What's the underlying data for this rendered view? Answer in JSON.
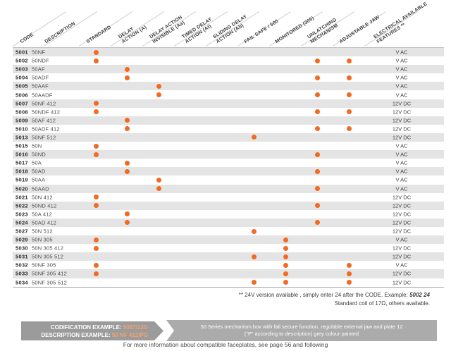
{
  "colors": {
    "accent_orange": "#f26a22",
    "row_stripe": "#e4e4e4",
    "banner_dark": "#9b9b9b",
    "banner_light": "#ababab",
    "banner_value_orange": "#f5a368"
  },
  "header": {
    "columns": [
      {
        "key": "code",
        "label": "CODE"
      },
      {
        "key": "description",
        "label": "DESCRIPTION"
      },
      {
        "key": "standard",
        "label": "STANDARD"
      },
      {
        "key": "delay_a",
        "label": "DELAY\nACTION (A)"
      },
      {
        "key": "invisible_aa",
        "label": "DELAY ACTION\nINVISIBLE (Aa)"
      },
      {
        "key": "timed_at",
        "label": "TIMED DELAY\nACTION (At)"
      },
      {
        "key": "sliding_ab",
        "label": "SLIDING DELAY\nACTION (Ab)"
      },
      {
        "key": "fail_safe",
        "label": "FAIL SAFE / 500"
      },
      {
        "key": "monitored",
        "label": "MONITORED (305)"
      },
      {
        "key": "unlatching",
        "label": "UNLATCHING\nMECHANISM"
      },
      {
        "key": "adjustable_jaw",
        "label": "ADJUSTABLE JAW"
      },
      {
        "key": "features",
        "label": "ELECTRICAL AVAILABLE\nFEATURES **"
      }
    ]
  },
  "rows": [
    {
      "code": "5001",
      "description": "50NF",
      "dots": [
        "standard"
      ],
      "features": "V AC"
    },
    {
      "code": "5002",
      "description": "50NDF",
      "dots": [
        "standard",
        "unlatching",
        "adjustable_jaw"
      ],
      "features": "V AC"
    },
    {
      "code": "5003",
      "description": "50AF",
      "dots": [
        "delay_a"
      ],
      "features": "V AC"
    },
    {
      "code": "5004",
      "description": "50ADF",
      "dots": [
        "delay_a",
        "unlatching",
        "adjustable_jaw"
      ],
      "features": "V AC"
    },
    {
      "code": "5005",
      "description": "50AAF",
      "dots": [
        "invisible_aa"
      ],
      "features": "V AC"
    },
    {
      "code": "5006",
      "description": "50AADF",
      "dots": [
        "invisible_aa",
        "unlatching",
        "adjustable_jaw"
      ],
      "features": "V AC"
    },
    {
      "code": "5007",
      "description": "50NF 412",
      "dots": [
        "standard"
      ],
      "features": "12V DC"
    },
    {
      "code": "5008",
      "description": "50NDF 412",
      "dots": [
        "standard",
        "unlatching",
        "adjustable_jaw"
      ],
      "features": "12V DC"
    },
    {
      "code": "5009",
      "description": "50AF 412",
      "dots": [
        "delay_a"
      ],
      "features": "12V DC"
    },
    {
      "code": "5010",
      "description": "50ADF 412",
      "dots": [
        "delay_a",
        "unlatching",
        "adjustable_jaw"
      ],
      "features": "12V DC"
    },
    {
      "code": "5013",
      "description": "50NF 512",
      "dots": [
        "fail_safe"
      ],
      "features": "12V DC"
    },
    {
      "code": "5015",
      "description": "50N",
      "dots": [
        "standard"
      ],
      "features": "V AC"
    },
    {
      "code": "5016",
      "description": "50ND",
      "dots": [
        "standard",
        "unlatching"
      ],
      "features": "V AC"
    },
    {
      "code": "5017",
      "description": "50A",
      "dots": [
        "delay_a"
      ],
      "features": "V AC"
    },
    {
      "code": "5018",
      "description": "50AD",
      "dots": [
        "delay_a",
        "unlatching"
      ],
      "features": "V AC"
    },
    {
      "code": "5019",
      "description": "50AA",
      "dots": [
        "invisible_aa"
      ],
      "features": "V AC"
    },
    {
      "code": "5020",
      "description": "50AAD",
      "dots": [
        "invisible_aa",
        "unlatching"
      ],
      "features": "V AC"
    },
    {
      "code": "5021",
      "description": "50N 412",
      "dots": [
        "standard"
      ],
      "features": "12V DC"
    },
    {
      "code": "5022",
      "description": "50ND 412",
      "dots": [
        "standard",
        "unlatching"
      ],
      "features": "12V DC"
    },
    {
      "code": "5023",
      "description": "50A 412",
      "dots": [
        "delay_a"
      ],
      "features": "12V DC"
    },
    {
      "code": "5024",
      "description": "50AD 412",
      "dots": [
        "delay_a",
        "unlatching"
      ],
      "features": "12V DC"
    },
    {
      "code": "5027",
      "description": "50N 512",
      "dots": [
        "fail_safe"
      ],
      "features": "12V DC"
    },
    {
      "code": "5029",
      "description": "50N 305",
      "dots": [
        "standard",
        "monitored"
      ],
      "features": "V AC"
    },
    {
      "code": "5030",
      "description": "50N 305 412",
      "dots": [
        "standard",
        "monitored"
      ],
      "features": "12V DC"
    },
    {
      "code": "5031",
      "description": "50N 305 512",
      "dots": [
        "fail_safe",
        "monitored"
      ],
      "features": "12V DC"
    },
    {
      "code": "5032",
      "description": "50NF 305",
      "dots": [
        "standard",
        "monitored",
        "adjustable_jaw"
      ],
      "features": "V AC"
    },
    {
      "code": "5033",
      "description": "50NF 305 412",
      "dots": [
        "standard",
        "monitored",
        "adjustable_jaw"
      ],
      "features": "12V DC"
    },
    {
      "code": "5034",
      "description": "50NF 305 512",
      "dots": [
        "fail_safe",
        "monitored",
        "adjustable_jaw"
      ],
      "features": "12V DC"
    }
  ],
  "footnote": {
    "line1_text": "** 24V version available , simply enter 24 after the CODE. Example: ",
    "line1_example": "5002 24",
    "line2": "Standard coil of 17Ω, others available."
  },
  "banner": {
    "codification_label": "CODIFICATION EXAMPLE: ",
    "codification_value": "5007/12G",
    "description_label": "DESCRIPTION EXAMPLE: ",
    "description_value": "50 NF 412/PG",
    "right_line1": "50 Series mechanism box with fail secure function, regulable external jaw and plate 12",
    "right_line2": "(“P” according to description) grey colour painted"
  },
  "bottom_note": "For more information about compatible faceplates, see page 56 and following"
}
